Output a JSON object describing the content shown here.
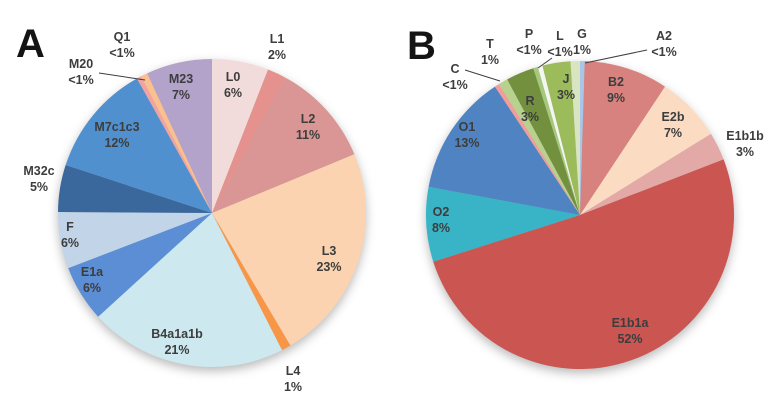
{
  "figure_background": "#ffffff",
  "label_text_color": "#3d3d3d",
  "chart_data": [
    {
      "type": "pie",
      "panel_label": "A",
      "start_angle_deg": 0,
      "direction": "clockwise",
      "legend_position": "none",
      "grid": false,
      "slices": [
        {
          "label": "L0",
          "pct": "6%",
          "value": 6,
          "color": "#f2dcdb"
        },
        {
          "label": "L1",
          "pct": "2%",
          "value": 2,
          "color": "#e5918e"
        },
        {
          "label": "L2",
          "pct": "11%",
          "value": 11,
          "color": "#d99694"
        },
        {
          "label": "L3",
          "pct": "23%",
          "value": 23,
          "color": "#fbd3b0"
        },
        {
          "label": "L4",
          "pct": "1%",
          "value": 1,
          "color": "#f79646"
        },
        {
          "label": "B4a1a1b",
          "pct": "21%",
          "value": 21,
          "color": "#cde8ef"
        },
        {
          "label": "E1a",
          "pct": "6%",
          "value": 6,
          "color": "#5b8ed4"
        },
        {
          "label": "F",
          "pct": "6%",
          "value": 6,
          "color": "#c2d4e8"
        },
        {
          "label": "M32c",
          "pct": "5%",
          "value": 5,
          "color": "#3a689c"
        },
        {
          "label": "M7c1c3",
          "pct": "12%",
          "value": 12,
          "color": "#5190ce"
        },
        {
          "label": "M20",
          "pct": "<1%",
          "value": 0.5,
          "color": "#f1a3a2"
        },
        {
          "label": "Q1",
          "pct": "<1%",
          "value": 0.7,
          "color": "#fac08e"
        },
        {
          "label": "M23",
          "pct": "7%",
          "value": 7,
          "color": "#b3a2c9"
        }
      ]
    },
    {
      "type": "pie",
      "panel_label": "B",
      "start_angle_deg": 0,
      "direction": "clockwise",
      "legend_position": "none",
      "grid": false,
      "slices": [
        {
          "label": "A2",
          "pct": "<1%",
          "value": 0.5,
          "color": "#a9c6e8"
        },
        {
          "label": "B2",
          "pct": "9%",
          "value": 9,
          "color": "#d8827f"
        },
        {
          "label": "E2b",
          "pct": "7%",
          "value": 7,
          "color": "#fbdcc2"
        },
        {
          "label": "E1b1b",
          "pct": "3%",
          "value": 3,
          "color": "#e2a9a7"
        },
        {
          "label": "E1b1a",
          "pct": "52%",
          "value": 52,
          "color": "#ca5551"
        },
        {
          "label": "O2",
          "pct": "8%",
          "value": 8,
          "color": "#38b4c6"
        },
        {
          "label": "O1",
          "pct": "13%",
          "value": 13,
          "color": "#4f83c1"
        },
        {
          "label": "C",
          "pct": "<1%",
          "value": 0.5,
          "color": "#f29c9b"
        },
        {
          "label": "T",
          "pct": "1%",
          "value": 1,
          "color": "#b8d18f"
        },
        {
          "label": "R",
          "pct": "3%",
          "value": 3,
          "color": "#72903e"
        },
        {
          "label": "P",
          "pct": "<1%",
          "value": 0.5,
          "color": "#a5c87c"
        },
        {
          "label": "L",
          "pct": "<1%",
          "value": 0.5,
          "color": "#f4f6f0"
        },
        {
          "label": "J",
          "pct": "3%",
          "value": 3,
          "color": "#9cbb5b"
        },
        {
          "label": "G",
          "pct": "1%",
          "value": 1,
          "color": "#d8e5c0"
        }
      ]
    }
  ]
}
